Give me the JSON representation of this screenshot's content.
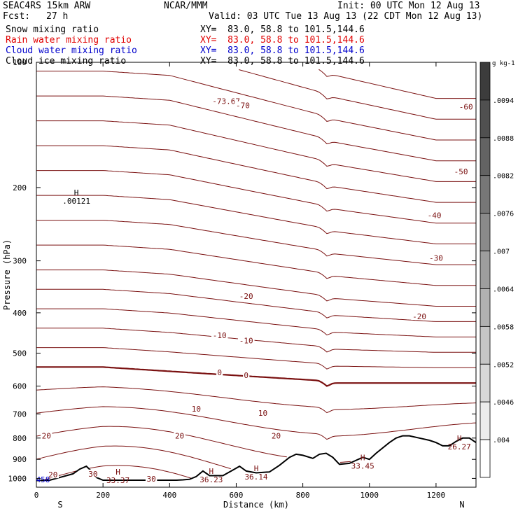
{
  "header": {
    "model": "SEAC4RS 15km ARW",
    "org": "NCAR/MMM",
    "init": "Init: 00 UTC Mon 12 Aug 13",
    "fcst_label": "Fcst:",
    "fcst_value": "27 h",
    "valid": "Valid: 03 UTC Tue 13 Aug 13 (22 CDT Mon 12 Aug 13)"
  },
  "fields": [
    {
      "name": "Snow mixing ratio",
      "xy": "XY=  83.0, 58.8 to 101.5,144.6",
      "color": "#000000"
    },
    {
      "name": "Rain water mixing ratio",
      "xy": "XY=  83.0, 58.8 to 101.5,144.6",
      "color": "#e00000"
    },
    {
      "name": "Cloud water mixing ratio",
      "xy": "XY=  83.0, 58.8 to 101.5,144.6",
      "color": "#0000cc"
    },
    {
      "name": "Cloud ice mixing ratio",
      "xy": "XY=  83.0, 58.8 to 101.5,144.6",
      "color": "#000000"
    }
  ],
  "chart_data": {
    "type": "cross-section contour",
    "xlabel": "Distance (km)",
    "ylabel": "Pressure (hPa)",
    "xlim": [
      0,
      1320
    ],
    "ylim": [
      1050,
      100
    ],
    "y_scale": "log",
    "x_ticks": [
      0,
      200,
      400,
      600,
      800,
      1000,
      1200
    ],
    "y_ticks": [
      200,
      300,
      400,
      500,
      600,
      700,
      800,
      900,
      1000
    ],
    "y_top_tick": "100",
    "endpoints": {
      "left": "S",
      "right": "N"
    },
    "temperature_contours": {
      "color": "#7a1010",
      "interval": 5,
      "labels": [
        {
          "text": "-73.67",
          "x": 570,
          "p": 124
        },
        {
          "text": "-70",
          "x": 620,
          "p": 127
        },
        {
          "text": "-60",
          "x": 1290,
          "p": 128
        },
        {
          "text": "-50",
          "x": 1275,
          "p": 183
        },
        {
          "text": "-40",
          "x": 1195,
          "p": 233
        },
        {
          "text": "-30",
          "x": 1200,
          "p": 295
        },
        {
          "text": "-20",
          "x": 630,
          "p": 365
        },
        {
          "text": "-20",
          "x": 1150,
          "p": 408
        },
        {
          "text": "-10",
          "x": 550,
          "p": 453
        },
        {
          "text": "-10",
          "x": 630,
          "p": 466
        },
        {
          "text": "0",
          "x": 550,
          "p": 556
        },
        {
          "text": "0",
          "x": 630,
          "p": 565
        },
        {
          "text": "10",
          "x": 480,
          "p": 680
        },
        {
          "text": "10",
          "x": 680,
          "p": 697
        },
        {
          "text": "20",
          "x": 30,
          "p": 790
        },
        {
          "text": "20",
          "x": 430,
          "p": 790
        },
        {
          "text": "20",
          "x": 720,
          "p": 790
        },
        {
          "text": "20",
          "x": 50,
          "p": 980
        },
        {
          "text": "30",
          "x": 170,
          "p": 975
        },
        {
          "text": "30",
          "x": 345,
          "p": 1003
        }
      ],
      "extrema": [
        {
          "mark": "H",
          "value": ".00121",
          "x": 120,
          "p": 212,
          "color": "#000000"
        },
        {
          "mark": "H",
          "value": "33.37",
          "x": 245,
          "p": 995,
          "color": "#7a1010"
        },
        {
          "mark": "H",
          "value": "36.23",
          "x": 525,
          "p": 990,
          "color": "#7a1010"
        },
        {
          "mark": "H",
          "value": "36.14",
          "x": 660,
          "p": 975,
          "color": "#7a1010"
        },
        {
          "mark": "H",
          "value": "33.45",
          "x": 980,
          "p": 918,
          "color": "#7a1010"
        },
        {
          "mark": "H",
          "value": "26.27",
          "x": 1270,
          "p": 826,
          "color": "#7a1010"
        }
      ],
      "corner_label": {
        "text": "458",
        "x": 20,
        "p": 1007,
        "color": "#0000cc"
      }
    },
    "colorbar": {
      "unit": "g kg-1",
      "ticks": [
        ".0094",
        ".0088",
        ".0082",
        ".0076",
        ".007",
        ".0064",
        ".0058",
        ".0052",
        ".0046",
        ".004"
      ]
    },
    "terrain": {
      "x": [
        0,
        40,
        80,
        110,
        130,
        150,
        165,
        180,
        200,
        260,
        340,
        420,
        440,
        460,
        480,
        500,
        520,
        560,
        590,
        610,
        630,
        660,
        700,
        730,
        760,
        780,
        800,
        830,
        850,
        870,
        890,
        910,
        940,
        960,
        980,
        1000,
        1020,
        1060,
        1080,
        1100,
        1120,
        1150,
        1180,
        1200,
        1220,
        1240,
        1260,
        1280,
        1300,
        1320
      ],
      "p": [
        1012,
        1010,
        990,
        975,
        950,
        935,
        960,
        995,
        1010,
        1010,
        1010,
        1010,
        1008,
        1005,
        990,
        960,
        985,
        985,
        955,
        935,
        960,
        970,
        965,
        930,
        890,
        875,
        880,
        895,
        875,
        870,
        890,
        925,
        920,
        905,
        890,
        900,
        870,
        820,
        800,
        790,
        790,
        800,
        810,
        820,
        835,
        835,
        815,
        800,
        800,
        820
      ]
    }
  }
}
